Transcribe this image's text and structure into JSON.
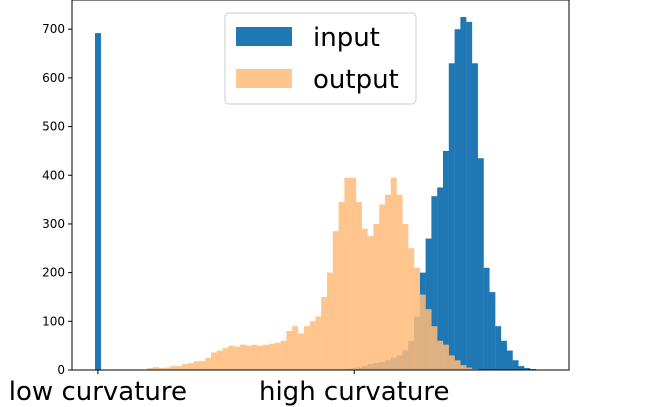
{
  "chart_data": {
    "type": "bar",
    "title": "",
    "xlabel": "",
    "ylabel": "",
    "ylim": [
      0,
      760
    ],
    "yticks": [
      0,
      100,
      200,
      300,
      400,
      500,
      600,
      700
    ],
    "x_tick_labels": [
      "low curvature",
      "high curvature"
    ],
    "legend_position": "upper-center",
    "grid": false,
    "series": [
      {
        "name": "input",
        "color": "#1f77b4",
        "alpha": 1,
        "values": [
          692,
          0,
          0,
          0,
          0,
          0,
          0,
          0,
          0,
          0,
          0,
          0,
          0,
          0,
          0,
          0,
          0,
          0,
          0,
          0,
          0,
          0,
          0,
          0,
          0,
          0,
          0,
          0,
          0,
          0,
          0,
          0,
          0,
          0,
          0,
          0,
          0,
          0,
          0,
          0,
          0,
          0,
          0,
          2,
          3,
          5,
          8,
          12,
          14,
          16,
          20,
          25,
          30,
          40,
          60,
          110,
          200,
          270,
          357,
          375,
          450,
          630,
          700,
          725,
          715,
          630,
          435,
          210,
          160,
          90,
          60,
          40,
          20,
          8,
          4,
          2
        ]
      },
      {
        "name": "output",
        "color": "#ffbb78",
        "alpha": 0.85,
        "values": [
          0,
          0,
          0,
          0,
          0,
          0,
          0,
          1,
          4,
          6,
          4,
          5,
          8,
          8,
          12,
          14,
          18,
          18,
          25,
          36,
          40,
          45,
          50,
          48,
          52,
          50,
          52,
          50,
          52,
          54,
          56,
          60,
          80,
          90,
          75,
          90,
          100,
          110,
          150,
          200,
          285,
          345,
          395,
          395,
          345,
          290,
          275,
          300,
          340,
          360,
          395,
          360,
          300,
          250,
          210,
          155,
          125,
          90,
          60,
          52,
          30,
          20,
          10,
          5,
          2
        ]
      }
    ],
    "x_tick_bins": [
      0,
      44.2
    ],
    "histogram_bin_count": 76,
    "output_bin_offset": 1
  }
}
